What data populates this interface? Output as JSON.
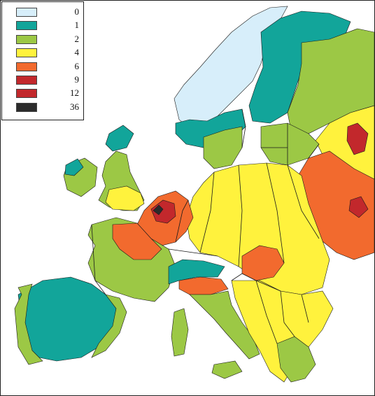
{
  "legend": {
    "classes": [
      {
        "label": "0",
        "color": "#d7eefa"
      },
      {
        "label": "1",
        "color": "#12a59a"
      },
      {
        "label": "2",
        "color": "#9cc845"
      },
      {
        "label": "4",
        "color": "#fff23d"
      },
      {
        "label": "6",
        "color": "#f26a2e"
      },
      {
        "label": "9",
        "color": "#c2282c"
      },
      {
        "label": "12",
        "color": "#c2282c"
      },
      {
        "label": "36",
        "color": "#2b2b2b"
      }
    ]
  },
  "colors": {
    "sea": "#ffffff",
    "border": "#1a1a1a"
  }
}
